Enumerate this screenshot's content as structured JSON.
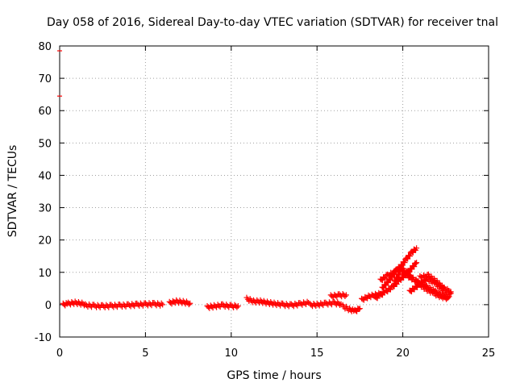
{
  "chart_data": {
    "type": "scatter",
    "title": "Day 058 of 2016, Sidereal Day-to-day VTEC variation (SDTVAR) for receiver tnal",
    "xlabel": "GPS time / hours",
    "ylabel": "SDTVAR / TECUs",
    "xlim": [
      0,
      25
    ],
    "ylim": [
      -10,
      80
    ],
    "xticks": [
      "0",
      "5",
      "10",
      "15",
      "20",
      "25"
    ],
    "yticks": [
      "-10",
      "0",
      "10",
      "20",
      "30",
      "40",
      "50",
      "60",
      "70",
      "80"
    ],
    "grid": true,
    "marker": "+",
    "series": [
      {
        "name": "SDTVAR",
        "color": "#ff0000",
        "segments": [
          {
            "x": [
              0.2,
              0.5,
              0.9,
              1.3,
              1.5
            ],
            "y": [
              0.0,
              0.3,
              0.6,
              0.3,
              0.1
            ]
          },
          {
            "x": [
              1.5,
              2.0,
              2.5,
              3.0,
              3.5,
              4.0,
              4.5,
              5.0,
              5.5,
              6.0
            ],
            "y": [
              -0.2,
              -0.4,
              -0.5,
              -0.4,
              -0.3,
              -0.2,
              0.0,
              0.1,
              0.2,
              0.0
            ]
          },
          {
            "x": [
              6.4,
              6.8,
              7.2,
              7.6
            ],
            "y": [
              0.5,
              1.0,
              0.8,
              0.4
            ]
          },
          {
            "x": [
              8.6,
              9.0,
              9.5,
              10.0,
              10.4
            ],
            "y": [
              -0.8,
              -0.5,
              -0.2,
              -0.5,
              -0.4
            ]
          },
          {
            "x": [
              10.9,
              11.3,
              11.7,
              12.1,
              12.5,
              13.0,
              13.5,
              14.0,
              14.5
            ],
            "y": [
              1.8,
              1.0,
              1.0,
              0.6,
              0.3,
              0.0,
              -0.2,
              0.2,
              0.6
            ]
          },
          {
            "x": [
              14.6,
              15.0,
              15.5,
              16.0,
              16.4
            ],
            "y": [
              -0.1,
              0.0,
              0.3,
              0.5,
              0.2
            ]
          },
          {
            "x": [
              15.8,
              16.3,
              16.7
            ],
            "y": [
              2.6,
              2.9,
              3.0
            ]
          },
          {
            "x": [
              16.5,
              16.9,
              17.2,
              17.5
            ],
            "y": [
              -0.5,
              -1.5,
              -2.0,
              -1.2
            ]
          },
          {
            "x": [
              17.6,
              18.0,
              18.4,
              18.8
            ],
            "y": [
              1.5,
              2.5,
              3.0,
              3.5
            ]
          },
          {
            "x": [
              18.4,
              18.7,
              19.0,
              19.4,
              19.8,
              20.3,
              20.8
            ],
            "y": [
              2.0,
              3.0,
              4.0,
              5.5,
              7.5,
              10.0,
              13.0
            ]
          },
          {
            "x": [
              18.8,
              19.2,
              19.6,
              19.9,
              20.2,
              20.5,
              20.8
            ],
            "y": [
              5.0,
              7.5,
              10.5,
              12.0,
              14.0,
              16.0,
              17.5
            ]
          },
          {
            "x": [
              18.7,
              19.1,
              19.5,
              19.9,
              20.3,
              20.8,
              21.3,
              21.8,
              22.2,
              22.6
            ],
            "y": [
              7.5,
              9.0,
              10.0,
              11.5,
              9.5,
              7.0,
              5.0,
              3.5,
              2.5,
              2.0
            ]
          },
          {
            "x": [
              19.5,
              19.9,
              20.4,
              20.9,
              21.4,
              21.9,
              22.3,
              22.7
            ],
            "y": [
              7.0,
              10.5,
              8.5,
              7.0,
              5.5,
              4.0,
              3.0,
              2.5
            ]
          },
          {
            "x": [
              20.4,
              20.9,
              21.4,
              21.9,
              22.4,
              22.8
            ],
            "y": [
              4.0,
              6.0,
              8.0,
              6.5,
              4.5,
              3.5
            ]
          },
          {
            "x": [
              21.0,
              21.5,
              22.0,
              22.4,
              22.8
            ],
            "y": [
              8.5,
              9.0,
              7.0,
              5.0,
              4.0
            ]
          },
          {
            "x": [
              0.0
            ],
            "y": [
              78.5
            ]
          },
          {
            "x": [
              0.0
            ],
            "y": [
              64.5
            ]
          }
        ]
      }
    ]
  }
}
